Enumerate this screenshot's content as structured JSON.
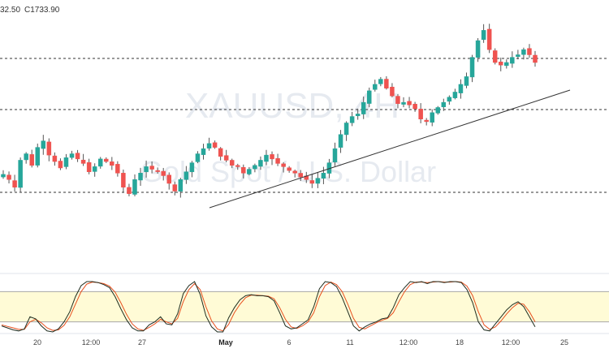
{
  "header": {
    "ohlc_partial": "32.50",
    "ohlc_close": "C1733.90"
  },
  "watermark": {
    "symbol": "XAUUSD, 4H",
    "description": "Gold Spot / U.S. Dollar"
  },
  "colors": {
    "up": "#26a69a",
    "down": "#ef5350",
    "stoch_k": "#1f2d1f",
    "stoch_d": "#e8501e",
    "band_fill": "#fffbd6",
    "band_border": "#a7a7a7",
    "hline": "#333333",
    "trendline": "#333333"
  },
  "chart_data": [
    {
      "type": "candlestick",
      "x_axis_labels": [
        "20",
        "12:00",
        "27",
        "May",
        "6",
        "11",
        "12:00",
        "18",
        "12:00",
        "25"
      ],
      "horizontal_levels": [
        "upper",
        "middle",
        "lower"
      ],
      "trendline": {
        "from": "late April swing low",
        "to": "mid-May rising support"
      },
      "profile": [
        38,
        30,
        18,
        60,
        70,
        52,
        80,
        90,
        68,
        58,
        48,
        64,
        70,
        62,
        55,
        42,
        50,
        62,
        58,
        52,
        40,
        18,
        8,
        30,
        40,
        50,
        46,
        44,
        36,
        24,
        12,
        30,
        42,
        56,
        70,
        78,
        86,
        80,
        66,
        60,
        52,
        50,
        40,
        46,
        52,
        60,
        68,
        62,
        55,
        50,
        44,
        40,
        34,
        30,
        24,
        32,
        40,
        56,
        78,
        100,
        118,
        128,
        132,
        150,
        168,
        178,
        186,
        172,
        160,
        148,
        150,
        146,
        140,
        124,
        120,
        134,
        142,
        150,
        158,
        166,
        178,
        190,
        220,
        246,
        262,
        232,
        212,
        208,
        212,
        220,
        224,
        232,
        224,
        212
      ]
    },
    {
      "type": "line",
      "indicator": "stochastic",
      "series": [
        {
          "values": [
            12,
            8,
            4,
            2,
            6,
            30,
            26,
            12,
            2,
            0,
            6,
            20,
            40,
            70,
            92,
            100,
            100,
            98,
            94,
            88,
            70,
            46,
            24,
            8,
            2,
            2,
            14,
            20,
            30,
            16,
            14,
            36,
            76,
            92,
            100,
            74,
            32,
            10,
            0,
            0,
            28,
            48,
            64,
            72,
            74,
            72,
            72,
            70,
            62,
            38,
            12,
            6,
            8,
            16,
            24,
            50,
            86,
            100,
            98,
            90,
            68,
            40,
            12,
            2,
            10,
            16,
            20,
            26,
            28,
            48,
            74,
            88,
            100,
            98,
            100,
            96,
            100,
            100,
            98,
            100,
            100,
            98,
            84,
            58,
            20,
            4,
            2,
            16,
            30,
            44,
            54,
            60,
            50,
            30,
            10
          ]
        },
        {
          "values": [
            14,
            11,
            8,
            5,
            5,
            20,
            25,
            18,
            8,
            3,
            4,
            13,
            30,
            55,
            80,
            95,
            99,
            98,
            96,
            91,
            79,
            58,
            35,
            16,
            6,
            3,
            9,
            16,
            25,
            20,
            16,
            27,
            60,
            84,
            96,
            84,
            50,
            22,
            6,
            2,
            15,
            38,
            55,
            68,
            73,
            73,
            72,
            71,
            66,
            48,
            25,
            10,
            7,
            12,
            20,
            38,
            70,
            92,
            99,
            94,
            80,
            55,
            27,
            9,
            6,
            12,
            18,
            23,
            27,
            38,
            60,
            80,
            94,
            99,
            99,
            98,
            99,
            100,
            99,
            99,
            100,
            99,
            91,
            72,
            40,
            14,
            5,
            10,
            22,
            36,
            48,
            57,
            55,
            40,
            20
          ]
        }
      ],
      "ylim": [
        0,
        100
      ],
      "band": [
        20,
        80
      ]
    }
  ]
}
